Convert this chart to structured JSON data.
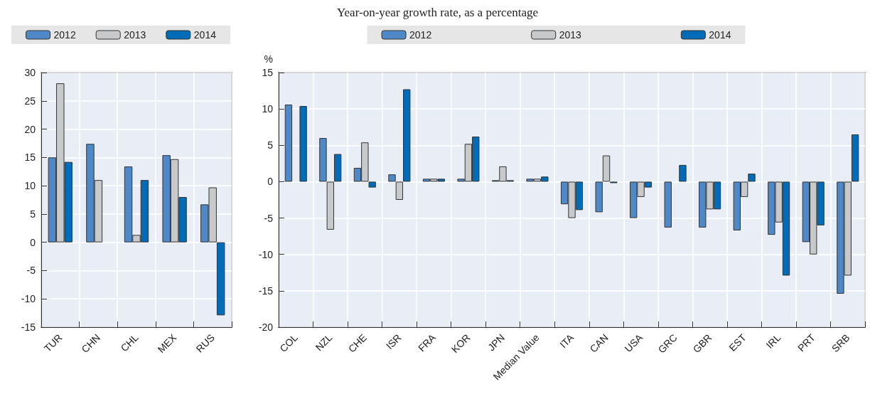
{
  "chart_data": [
    {
      "type": "bar",
      "categories": [
        "TUR",
        "CHN",
        "CHL",
        "MEX",
        "RUS"
      ],
      "series": [
        {
          "name": "2012",
          "color": "#4f88c6",
          "values": [
            15,
            17.4,
            13.4,
            15.4,
            6.7
          ]
        },
        {
          "name": "2013",
          "color": "#c8c9cb",
          "values": [
            28.1,
            11,
            1.3,
            14.7,
            9.7
          ]
        },
        {
          "name": "2014",
          "color": "#006bb6",
          "values": [
            14.2,
            null,
            11,
            8,
            -12.9
          ]
        }
      ],
      "ylim": [
        -15,
        30
      ],
      "yticks": [
        -15,
        -10,
        -5,
        0,
        5,
        10,
        15,
        20,
        25,
        30
      ],
      "grid": true,
      "legend": "top"
    },
    {
      "type": "bar",
      "subtitle": "Year-on-year growth rate, as a percentage",
      "ylabel": "%",
      "categories": [
        "COL",
        "NZL",
        "CHE",
        "ISR",
        "FRA",
        "KOR",
        "JPN",
        "Median Value",
        "ITA",
        "CAN",
        "USA",
        "GRC",
        "GBR",
        "EST",
        "IRL",
        "PRT",
        "SRB"
      ],
      "series": [
        {
          "name": "2012",
          "color": "#4f88c6",
          "values": [
            10.6,
            6.0,
            1.9,
            1.0,
            0.4,
            0.4,
            0.2,
            0.4,
            -3.1,
            -4.2,
            -5.0,
            -6.3,
            -6.3,
            -6.7,
            -7.3,
            -8.3,
            -15.4
          ]
        },
        {
          "name": "2013",
          "color": "#c8c9cb",
          "values": [
            null,
            -6.6,
            5.4,
            -2.5,
            0.4,
            5.2,
            2.1,
            0.4,
            -5.0,
            3.6,
            -2.1,
            null,
            -3.8,
            -2.1,
            -5.6,
            -10.0,
            -12.9
          ]
        },
        {
          "name": "2014",
          "color": "#006bb6",
          "values": [
            10.4,
            3.8,
            -0.8,
            12.7,
            0.4,
            6.2,
            0.2,
            0.7,
            -3.9,
            -0.2,
            -0.8,
            2.3,
            -3.8,
            1.1,
            -12.9,
            -6.0,
            6.5
          ]
        }
      ],
      "ylim": [
        -20,
        15
      ],
      "yticks": [
        -20,
        -15,
        -10,
        -5,
        0,
        5,
        10,
        15
      ],
      "grid": true,
      "legend": "top"
    }
  ]
}
